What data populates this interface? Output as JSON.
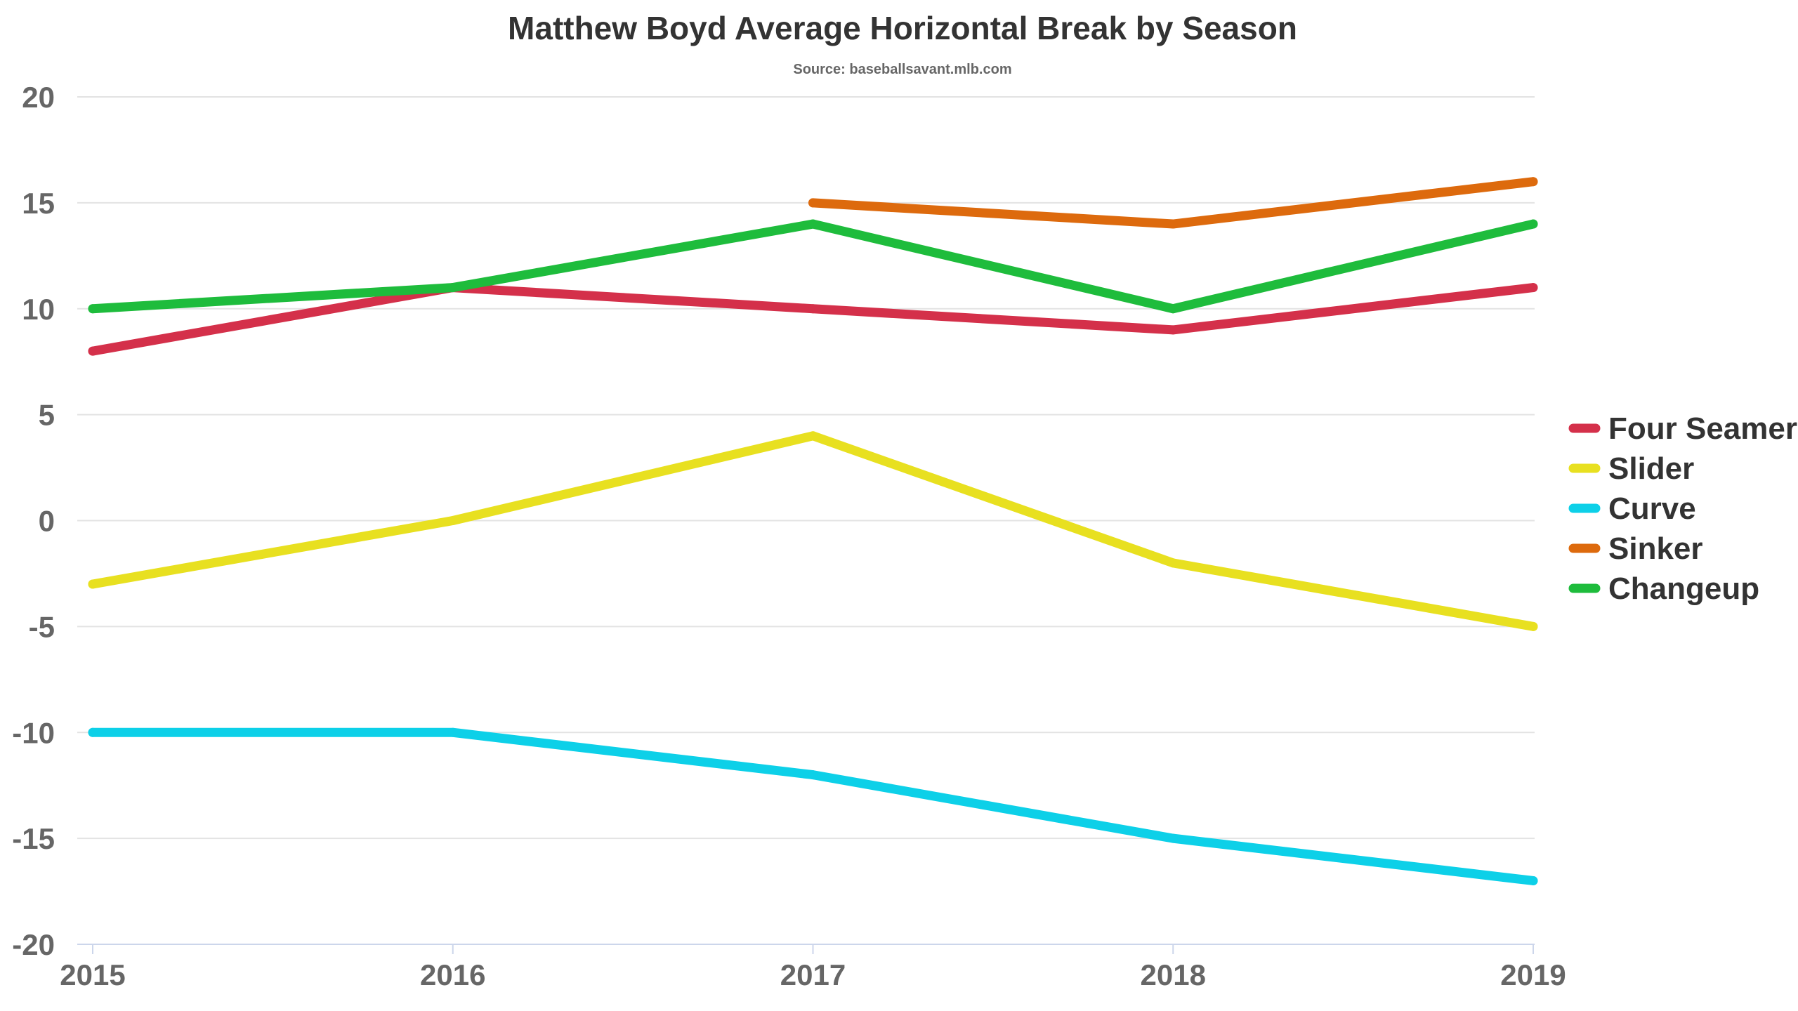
{
  "chart_data": {
    "type": "line",
    "title": "Matthew Boyd Average Horizontal Break by Season",
    "subtitle": "Source: baseballsavant.mlb.com",
    "xlabel": "",
    "ylabel": "",
    "categories": [
      "2015",
      "2016",
      "2017",
      "2018",
      "2019"
    ],
    "ylim": [
      -20,
      20
    ],
    "yticks": [
      20,
      15,
      10,
      5,
      0,
      -5,
      -10,
      -15,
      -20
    ],
    "grid": true,
    "legend_position": "right",
    "series": [
      {
        "name": "Four Seamer",
        "color": "#d4304a",
        "values": [
          8,
          11,
          10,
          9,
          11
        ]
      },
      {
        "name": "Slider",
        "color": "#e8e020",
        "values": [
          -3,
          0,
          4,
          -2,
          -5
        ]
      },
      {
        "name": "Curve",
        "color": "#0dd0e8",
        "values": [
          -10,
          -10,
          -12,
          -15,
          -17
        ]
      },
      {
        "name": "Sinker",
        "color": "#dd6a0d",
        "values": [
          null,
          null,
          15,
          14,
          16
        ]
      },
      {
        "name": "Changeup",
        "color": "#1ebc3c",
        "values": [
          10,
          11,
          14,
          10,
          14
        ]
      }
    ]
  }
}
